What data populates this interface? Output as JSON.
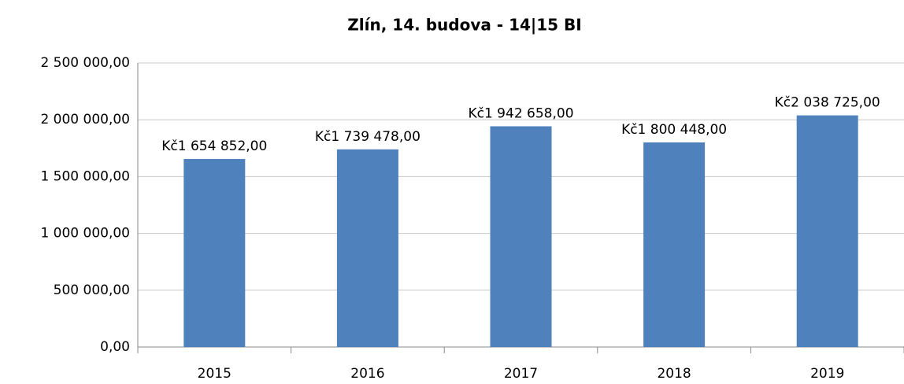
{
  "chart_data": {
    "type": "bar",
    "title": "Zlín, 14. budova - 14|15 BI",
    "categories": [
      "2015",
      "2016",
      "2017",
      "2018",
      "2019"
    ],
    "values": [
      1654852,
      1739478,
      1942658,
      1800448,
      2038725
    ],
    "value_labels": [
      "Kč1 654 852,00",
      "Kč1 739 478,00",
      "Kč1 942 658,00",
      "Kč1 800 448,00",
      "Kč2 038 725,00"
    ],
    "color": "#4f81bd",
    "ylim": [
      0,
      2500000
    ],
    "yticks": [
      {
        "value": 0,
        "label": "0,00"
      },
      {
        "value": 500000,
        "label": "500 000,00"
      },
      {
        "value": 1000000,
        "label": "1 000 000,00"
      },
      {
        "value": 1500000,
        "label": "1 500 000,00"
      },
      {
        "value": 2000000,
        "label": "2 000 000,00"
      },
      {
        "value": 2500000,
        "label": "2 500 000,00"
      }
    ],
    "grid": true
  }
}
